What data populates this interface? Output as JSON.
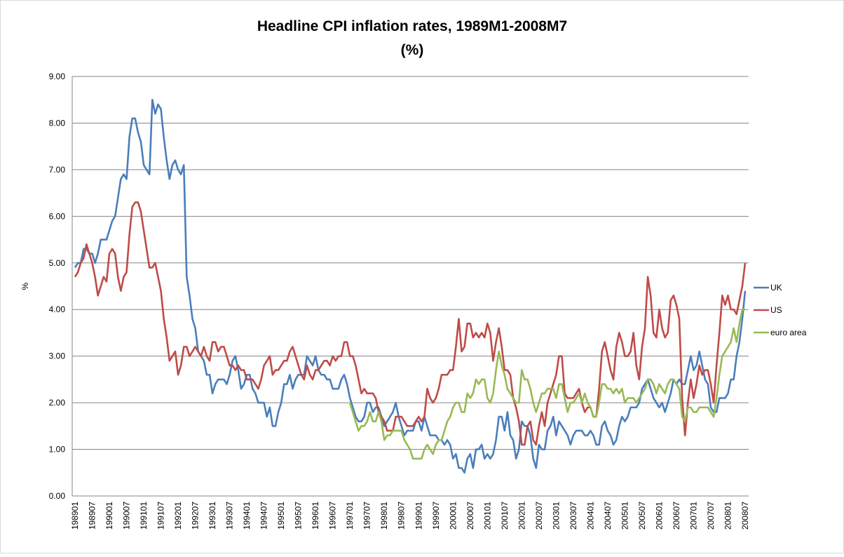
{
  "chart_data": {
    "type": "line",
    "title": "Headline CPI inflation rates, 1989M1-2008M7",
    "subtitle": "(%)",
    "ylabel": "%",
    "legend": "right",
    "grid": true,
    "ylim": [
      0,
      9
    ],
    "yticks": [
      {
        "value": 0,
        "label": "0.00"
      },
      {
        "value": 1,
        "label": "1.00"
      },
      {
        "value": 2,
        "label": "2.00"
      },
      {
        "value": 3,
        "label": "3.00"
      },
      {
        "value": 4,
        "label": "4.00"
      },
      {
        "value": 5,
        "label": "5.00"
      },
      {
        "value": 6,
        "label": "6.00"
      },
      {
        "value": 7,
        "label": "7.00"
      },
      {
        "value": 8,
        "label": "8.00"
      },
      {
        "value": 9,
        "label": "9.00"
      }
    ],
    "categories": [
      "198901",
      null,
      null,
      null,
      null,
      null,
      "198907",
      null,
      null,
      null,
      null,
      null,
      "199001",
      null,
      null,
      null,
      null,
      null,
      "199007",
      null,
      null,
      null,
      null,
      null,
      "199101",
      null,
      null,
      null,
      null,
      null,
      "199107",
      null,
      null,
      null,
      null,
      null,
      "199201",
      null,
      null,
      null,
      null,
      null,
      "199207",
      null,
      null,
      null,
      null,
      null,
      "199301",
      null,
      null,
      null,
      null,
      null,
      "199307",
      null,
      null,
      null,
      null,
      null,
      "199401",
      null,
      null,
      null,
      null,
      null,
      "199407",
      null,
      null,
      null,
      null,
      null,
      "199501",
      null,
      null,
      null,
      null,
      null,
      "199507",
      null,
      null,
      null,
      null,
      null,
      "199601",
      null,
      null,
      null,
      null,
      null,
      "199607",
      null,
      null,
      null,
      null,
      null,
      "199701",
      null,
      null,
      null,
      null,
      null,
      "199707",
      null,
      null,
      null,
      null,
      null,
      "199801",
      null,
      null,
      null,
      null,
      null,
      "199807",
      null,
      null,
      null,
      null,
      null,
      "199901",
      null,
      null,
      null,
      null,
      null,
      "199907",
      null,
      null,
      null,
      null,
      null,
      "200001",
      null,
      null,
      null,
      null,
      null,
      "200007",
      null,
      null,
      null,
      null,
      null,
      "200101",
      null,
      null,
      null,
      null,
      null,
      "200107",
      null,
      null,
      null,
      null,
      null,
      "200201",
      null,
      null,
      null,
      null,
      null,
      "200207",
      null,
      null,
      null,
      null,
      null,
      "200301",
      null,
      null,
      null,
      null,
      null,
      "200307",
      null,
      null,
      null,
      null,
      null,
      "200401",
      null,
      null,
      null,
      null,
      null,
      "200407",
      null,
      null,
      null,
      null,
      null,
      "200501",
      null,
      null,
      null,
      null,
      null,
      "200507",
      null,
      null,
      null,
      null,
      null,
      "200601",
      null,
      null,
      null,
      null,
      null,
      "200607",
      null,
      null,
      null,
      null,
      null,
      "200701",
      null,
      null,
      null,
      null,
      null,
      "200707",
      null,
      null,
      null,
      null,
      null,
      "200801",
      null,
      null,
      null,
      null,
      null,
      "200807"
    ],
    "series": [
      {
        "name": "UK",
        "color": "#4a7ebb",
        "values": [
          4.9,
          5.0,
          5.0,
          5.3,
          5.3,
          5.2,
          5.2,
          5.0,
          5.2,
          5.5,
          5.5,
          5.5,
          5.7,
          5.9,
          6.0,
          6.4,
          6.8,
          6.9,
          6.8,
          7.7,
          8.1,
          8.1,
          7.8,
          7.6,
          7.1,
          7.0,
          6.9,
          8.5,
          8.2,
          8.4,
          8.3,
          7.7,
          7.2,
          6.8,
          7.1,
          7.2,
          7.0,
          6.9,
          7.1,
          4.7,
          4.3,
          3.8,
          3.6,
          3.1,
          3.0,
          2.9,
          2.6,
          2.6,
          2.2,
          2.4,
          2.5,
          2.5,
          2.5,
          2.4,
          2.6,
          2.9,
          3.0,
          2.7,
          2.3,
          2.4,
          2.6,
          2.6,
          2.3,
          2.2,
          2.0,
          2.0,
          2.0,
          1.7,
          1.9,
          1.5,
          1.5,
          1.8,
          2.0,
          2.4,
          2.4,
          2.6,
          2.3,
          2.5,
          2.6,
          2.6,
          2.6,
          3.0,
          2.9,
          2.8,
          3.0,
          2.7,
          2.6,
          2.6,
          2.5,
          2.5,
          2.3,
          2.3,
          2.3,
          2.5,
          2.6,
          2.4,
          2.1,
          1.9,
          1.7,
          1.6,
          1.6,
          1.7,
          2.0,
          2.0,
          1.8,
          1.9,
          1.9,
          1.7,
          1.5,
          1.6,
          1.7,
          1.8,
          2.0,
          1.7,
          1.5,
          1.3,
          1.4,
          1.4,
          1.4,
          1.6,
          1.6,
          1.4,
          1.7,
          1.5,
          1.3,
          1.3,
          1.3,
          1.2,
          1.2,
          1.1,
          1.2,
          1.1,
          0.8,
          0.9,
          0.6,
          0.6,
          0.5,
          0.8,
          0.9,
          0.6,
          1.0,
          1.0,
          1.1,
          0.8,
          0.9,
          0.8,
          0.9,
          1.2,
          1.7,
          1.7,
          1.4,
          1.8,
          1.3,
          1.2,
          0.8,
          1.0,
          1.6,
          1.5,
          1.5,
          1.3,
          0.8,
          0.6,
          1.1,
          1.0,
          1.0,
          1.4,
          1.5,
          1.7,
          1.3,
          1.6,
          1.5,
          1.4,
          1.3,
          1.1,
          1.3,
          1.4,
          1.4,
          1.4,
          1.3,
          1.3,
          1.4,
          1.3,
          1.1,
          1.1,
          1.5,
          1.6,
          1.4,
          1.3,
          1.1,
          1.2,
          1.5,
          1.7,
          1.6,
          1.7,
          1.9,
          1.9,
          1.9,
          2.0,
          2.3,
          2.4,
          2.5,
          2.3,
          2.1,
          2.0,
          1.9,
          2.0,
          1.8,
          2.0,
          2.2,
          2.5,
          2.4,
          2.5,
          2.4,
          2.4,
          2.7,
          3.0,
          2.7,
          2.8,
          3.1,
          2.8,
          2.5,
          2.4,
          1.9,
          1.8,
          1.8,
          2.1,
          2.1,
          2.1,
          2.2,
          2.5,
          2.5,
          3.0,
          3.3,
          3.8,
          4.4
        ]
      },
      {
        "name": "US",
        "color": "#be4b48",
        "values": [
          4.7,
          4.8,
          5.0,
          5.1,
          5.4,
          5.2,
          5.0,
          4.7,
          4.3,
          4.5,
          4.7,
          4.6,
          5.2,
          5.3,
          5.2,
          4.7,
          4.4,
          4.7,
          4.8,
          5.6,
          6.2,
          6.3,
          6.3,
          6.1,
          5.7,
          5.3,
          4.9,
          4.9,
          5.0,
          4.7,
          4.4,
          3.8,
          3.4,
          2.9,
          3.0,
          3.1,
          2.6,
          2.8,
          3.2,
          3.2,
          3.0,
          3.1,
          3.2,
          3.1,
          3.0,
          3.2,
          3.0,
          2.9,
          3.3,
          3.3,
          3.1,
          3.2,
          3.2,
          3.0,
          2.8,
          2.8,
          2.7,
          2.8,
          2.7,
          2.7,
          2.5,
          2.5,
          2.5,
          2.4,
          2.3,
          2.5,
          2.8,
          2.9,
          3.0,
          2.6,
          2.7,
          2.7,
          2.8,
          2.9,
          2.9,
          3.1,
          3.2,
          3.0,
          2.8,
          2.6,
          2.5,
          2.8,
          2.6,
          2.5,
          2.7,
          2.7,
          2.8,
          2.9,
          2.9,
          2.8,
          3.0,
          2.9,
          3.0,
          3.0,
          3.3,
          3.3,
          3.0,
          3.0,
          2.8,
          2.5,
          2.2,
          2.3,
          2.2,
          2.2,
          2.2,
          2.1,
          1.8,
          1.7,
          1.6,
          1.4,
          1.4,
          1.4,
          1.7,
          1.7,
          1.7,
          1.6,
          1.5,
          1.5,
          1.5,
          1.6,
          1.7,
          1.6,
          1.7,
          2.3,
          2.1,
          2.0,
          2.1,
          2.3,
          2.6,
          2.6,
          2.6,
          2.7,
          2.7,
          3.2,
          3.8,
          3.1,
          3.2,
          3.7,
          3.7,
          3.4,
          3.5,
          3.4,
          3.5,
          3.4,
          3.7,
          3.5,
          2.9,
          3.3,
          3.6,
          3.2,
          2.7,
          2.7,
          2.6,
          2.1,
          1.9,
          1.6,
          1.1,
          1.1,
          1.5,
          1.6,
          1.2,
          1.1,
          1.5,
          1.8,
          1.5,
          2.0,
          2.2,
          2.4,
          2.6,
          3.0,
          3.0,
          2.2,
          2.1,
          2.1,
          2.1,
          2.2,
          2.3,
          2.0,
          1.8,
          1.9,
          1.9,
          1.7,
          1.7,
          2.3,
          3.1,
          3.3,
          3.0,
          2.7,
          2.5,
          3.2,
          3.5,
          3.3,
          3.0,
          3.0,
          3.1,
          3.5,
          2.8,
          2.5,
          3.2,
          3.6,
          4.7,
          4.3,
          3.5,
          3.4,
          4.0,
          3.6,
          3.4,
          3.5,
          4.2,
          4.3,
          4.1,
          3.8,
          2.1,
          1.3,
          2.0,
          2.5,
          2.1,
          2.4,
          2.8,
          2.6,
          2.7,
          2.7,
          2.4,
          2.0,
          2.8,
          3.5,
          4.3,
          4.1,
          4.3,
          4.0,
          4.0,
          3.9,
          4.2,
          4.5,
          5.0
        ]
      },
      {
        "name": "euro area",
        "color": "#98b954",
        "values": [
          null,
          null,
          null,
          null,
          null,
          null,
          null,
          null,
          null,
          null,
          null,
          null,
          null,
          null,
          null,
          null,
          null,
          null,
          null,
          null,
          null,
          null,
          null,
          null,
          null,
          null,
          null,
          null,
          null,
          null,
          null,
          null,
          null,
          null,
          null,
          null,
          null,
          null,
          null,
          null,
          null,
          null,
          null,
          null,
          null,
          null,
          null,
          null,
          null,
          null,
          null,
          null,
          null,
          null,
          null,
          null,
          null,
          null,
          null,
          null,
          null,
          null,
          null,
          null,
          null,
          null,
          null,
          null,
          null,
          null,
          null,
          null,
          null,
          null,
          null,
          null,
          null,
          null,
          null,
          null,
          null,
          null,
          null,
          null,
          null,
          null,
          null,
          null,
          null,
          null,
          null,
          null,
          null,
          null,
          null,
          null,
          2.0,
          1.8,
          1.6,
          1.4,
          1.5,
          1.5,
          1.6,
          1.8,
          1.6,
          1.6,
          1.8,
          1.6,
          1.2,
          1.3,
          1.3,
          1.4,
          1.4,
          1.4,
          1.4,
          1.2,
          1.1,
          1.0,
          0.8,
          0.8,
          0.8,
          0.8,
          1.0,
          1.1,
          1.0,
          0.9,
          1.1,
          1.2,
          1.2,
          1.4,
          1.6,
          1.7,
          1.9,
          2.0,
          2.0,
          1.8,
          1.8,
          2.2,
          2.1,
          2.2,
          2.5,
          2.4,
          2.5,
          2.5,
          2.1,
          2.0,
          2.2,
          2.7,
          3.1,
          2.8,
          2.6,
          2.3,
          2.2,
          2.1,
          2.0,
          2.0,
          2.7,
          2.5,
          2.5,
          2.3,
          2.0,
          1.8,
          2.0,
          2.2,
          2.2,
          2.3,
          2.3,
          2.3,
          2.1,
          2.4,
          2.4,
          2.1,
          1.8,
          2.0,
          2.0,
          2.1,
          2.2,
          2.0,
          2.2,
          2.0,
          1.9,
          1.7,
          1.7,
          2.0,
          2.4,
          2.4,
          2.3,
          2.3,
          2.2,
          2.3,
          2.2,
          2.3,
          2.0,
          2.1,
          2.1,
          2.1,
          2.0,
          2.1,
          2.2,
          2.3,
          2.5,
          2.5,
          2.4,
          2.2,
          2.4,
          2.3,
          2.2,
          2.4,
          2.5,
          2.5,
          2.4,
          2.3,
          1.7,
          1.6,
          1.9,
          1.9,
          1.8,
          1.8,
          1.9,
          1.9,
          1.9,
          1.9,
          1.8,
          1.7,
          2.1,
          2.6,
          3.0,
          3.1,
          3.2,
          3.3,
          3.6,
          3.3,
          3.7,
          4.0,
          4.0
        ]
      }
    ]
  }
}
